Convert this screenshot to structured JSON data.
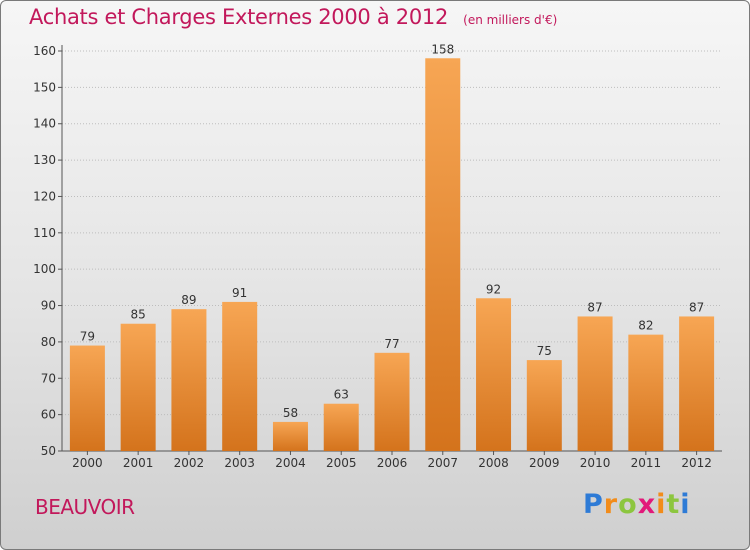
{
  "header": {
    "title": "Achats et Charges Externes 2000 à 2012",
    "subtitle": "(en milliers d'€)"
  },
  "footer": {
    "town": "BEAUVOIR",
    "logo": "Proxiti"
  },
  "colors": {
    "bar_light": "#f7a654",
    "bar_dark": "#d4731c",
    "title": "#c2185b",
    "grid": "#bdbdbd"
  },
  "chart_data": {
    "type": "bar",
    "title": "Achats et Charges Externes 2000 à 2012",
    "subtitle": "(en milliers d'€)",
    "categories": [
      "2000",
      "2001",
      "2002",
      "2003",
      "2004",
      "2005",
      "2006",
      "2007",
      "2008",
      "2009",
      "2010",
      "2011",
      "2012"
    ],
    "values": [
      79,
      85,
      89,
      91,
      58,
      63,
      77,
      158,
      92,
      75,
      87,
      82,
      87
    ],
    "xlabel": "",
    "ylabel": "",
    "ylim": [
      50,
      160
    ],
    "yticks": [
      50,
      60,
      70,
      80,
      90,
      100,
      110,
      120,
      130,
      140,
      150,
      160
    ],
    "grid": true,
    "data_labels": true
  }
}
